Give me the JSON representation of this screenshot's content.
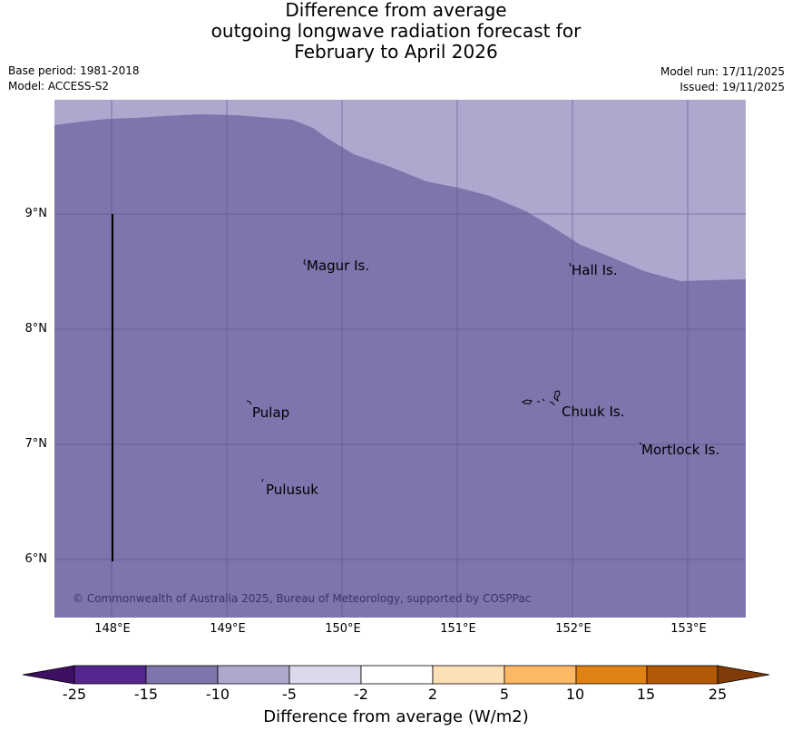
{
  "title": {
    "line1": "Difference from average",
    "line2": "outgoing longwave radiation forecast for",
    "line3": "February to April 2026"
  },
  "meta": {
    "base_period": "Base period: 1981-2018",
    "model": "Model: ACCESS-S2",
    "model_run": "Model run: 17/11/2025",
    "issued": "Issued: 19/11/2025"
  },
  "map": {
    "background_category": "-15 to -10",
    "northern_category": "-10 to -5",
    "fill_color_main": "#7f74ac",
    "fill_color_north": "#aea8cf",
    "gridline_color": "#5a5088",
    "lat_labels": [
      "9°N",
      "8°N",
      "7°N",
      "6°N"
    ],
    "lon_labels": [
      "148°E",
      "149°E",
      "150°E",
      "151°E",
      "152°E",
      "153°E"
    ],
    "places": [
      {
        "name": "Magur Is."
      },
      {
        "name": "Hall Is."
      },
      {
        "name": "Pulap"
      },
      {
        "name": "Chuuk Is."
      },
      {
        "name": "Mortlock Is."
      },
      {
        "name": "Pulusuk"
      }
    ],
    "copyright": "© Commonwealth of Australia 2025, Bureau of Meteorology, supported by COSPPac"
  },
  "colorbar": {
    "ticks": [
      "-25",
      "-15",
      "-10",
      "-5",
      "-2",
      "2",
      "5",
      "10",
      "15",
      "25"
    ],
    "colors": [
      "#3f0f63",
      "#54278f",
      "#7f74ac",
      "#aea8cf",
      "#dadaeb",
      "#ffffff",
      "#fee0b6",
      "#fdb863",
      "#e08214",
      "#b35806",
      "#7f3b08"
    ],
    "label": "Difference from average (W/m2)"
  }
}
